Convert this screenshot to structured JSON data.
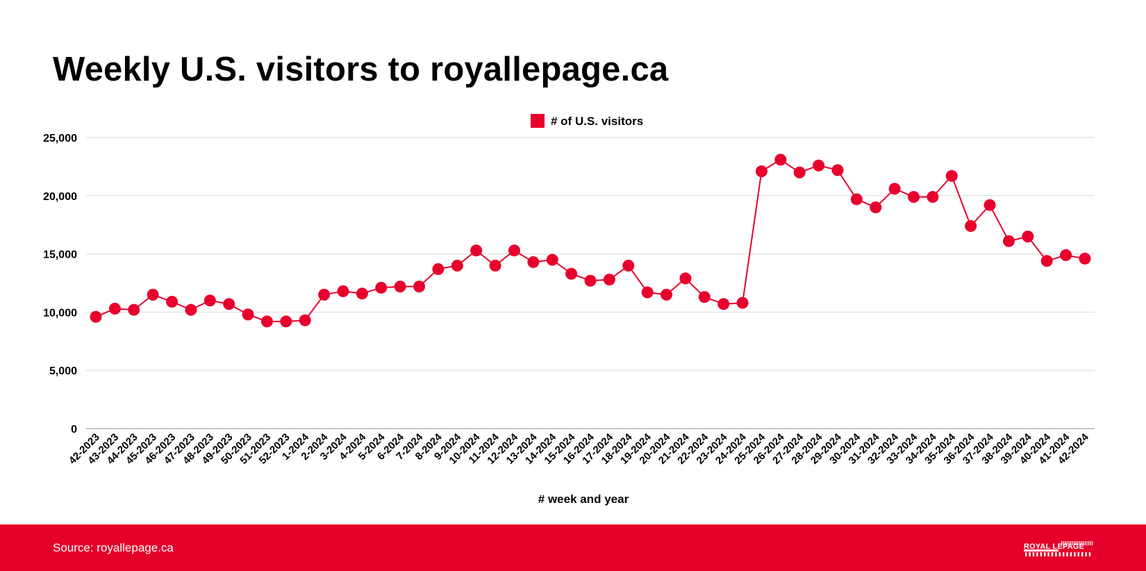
{
  "page": {
    "title": "Weekly U.S. visitors to royallepage.ca"
  },
  "footer": {
    "source": "Source: royallepage.ca",
    "logo_text": "ROYAL LEPAGE"
  },
  "colors": {
    "accent": "#e4002b",
    "series": "#e8002d",
    "grid": "#d9d9d9",
    "axis": "#888888"
  },
  "chart_data": {
    "type": "line",
    "title": "Weekly U.S. visitors to royallepage.ca",
    "xlabel": "# week and year",
    "ylabel": "",
    "ylim": [
      0,
      25000
    ],
    "yticks": [
      0,
      5000,
      10000,
      15000,
      20000,
      25000
    ],
    "ytick_labels": [
      "0",
      "5,000",
      "10,000",
      "15,000",
      "20,000",
      "25,000"
    ],
    "grid": true,
    "legend": {
      "position": "top-center",
      "entries": [
        "# of U.S. visitors"
      ]
    },
    "categories": [
      "42-2023",
      "43-2023",
      "44-2023",
      "45-2023",
      "46-2023",
      "47-2023",
      "48-2023",
      "49-2023",
      "50-2023",
      "51-2023",
      "52-2023",
      "1-2024",
      "2-2024",
      "3-2024",
      "4-2024",
      "5-2024",
      "6-2024",
      "7-2024",
      "8-2024",
      "9-2024",
      "10-2024",
      "11-2024",
      "12-2024",
      "13-2024",
      "14-2024",
      "15-2024",
      "16-2024",
      "17-2024",
      "18-2024",
      "19-2024",
      "20-2024",
      "21-2024",
      "22-2024",
      "23-2024",
      "24-2024",
      "25-2024",
      "26-2024",
      "27-2024",
      "28-2024",
      "29-2024",
      "30-2024",
      "31-2024",
      "32-2024",
      "33-2024",
      "34-2024",
      "35-2024",
      "36-2024",
      "37-2024",
      "38-2024",
      "39-2024",
      "40-2024",
      "41-2024",
      "42-2024"
    ],
    "series": [
      {
        "name": "# of U.S. visitors",
        "values": [
          9600,
          10300,
          10200,
          11500,
          10900,
          10200,
          11000,
          10700,
          9800,
          9200,
          9200,
          9300,
          11500,
          11800,
          11600,
          12100,
          12200,
          12200,
          13700,
          14000,
          15300,
          14000,
          15300,
          14300,
          14500,
          13300,
          12700,
          12800,
          14000,
          11700,
          11500,
          12900,
          11300,
          10700,
          10800,
          22100,
          23100,
          22000,
          22600,
          22200,
          19700,
          19000,
          20600,
          19900,
          19900,
          21700,
          17400,
          19200,
          16100,
          16500,
          14400,
          14900,
          14600
        ]
      }
    ]
  }
}
